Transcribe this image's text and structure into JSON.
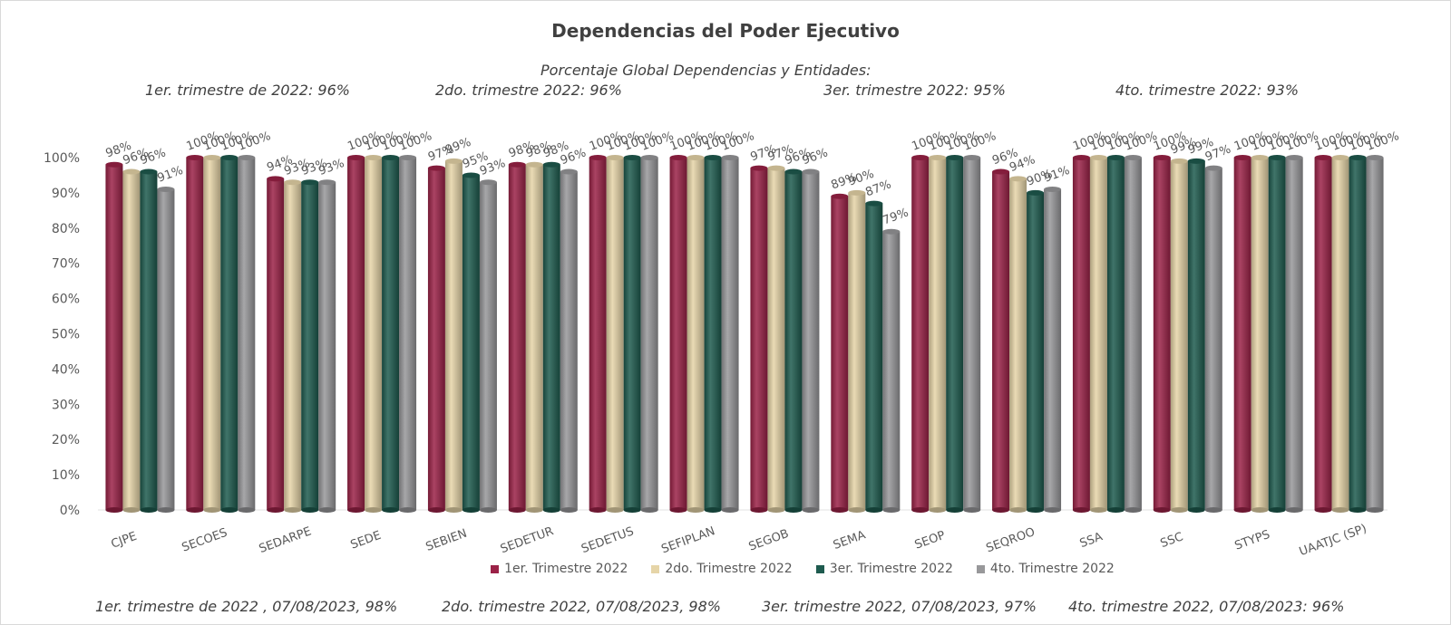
{
  "title": "Dependencias del Poder Ejecutivo",
  "header_line": "Porcentaje Global  Dependencias y Entidades:",
  "global_quarters": [
    "1er. trimestre de 2022: 96%",
    "2do. trimestre 2022: 96%",
    "3er. trimestre 2022: 95%",
    "4to. trimestre 2022: 93%"
  ],
  "footer_notes": [
    "1er. trimestre de 2022 , 07/08/2023, 98%",
    "2do. trimestre 2022, 07/08/2023, 98%",
    "3er. trimestre 2022, 07/08/2023, 97%",
    "4to. trimestre 2022, 07/08/2023: 96%"
  ],
  "colors": {
    "s1": "#9b2247",
    "s2": "#e6d5a8",
    "s3": "#1e5b4f",
    "s4": "#98989a"
  },
  "chart_data": {
    "type": "bar",
    "title": "Dependencias del Poder Ejecutivo",
    "categories": [
      "CJPE",
      "SECOES",
      "SEDARPE",
      "SEDE",
      "SEBIEN",
      "SEDETUR",
      "SEDETUS",
      "SEFIPLAN",
      "SEGOB",
      "SEMA",
      "SEOP",
      "SEQROO",
      "SSA",
      "SSC",
      "STYPS",
      "UAATJC (SP)"
    ],
    "series": [
      {
        "name": "1er. Trimestre 2022",
        "color": "#9b2247",
        "values": [
          98,
          100,
          94,
          100,
          97,
          98,
          100,
          100,
          97,
          89,
          100,
          96,
          100,
          100,
          100,
          100
        ]
      },
      {
        "name": "2do. Trimestre 2022",
        "color": "#e6d5a8",
        "values": [
          96,
          100,
          93,
          100,
          99,
          98,
          100,
          100,
          97,
          90,
          100,
          94,
          100,
          99,
          100,
          100
        ]
      },
      {
        "name": "3er. Trimestre 2022",
        "color": "#1e5b4f",
        "values": [
          96,
          100,
          93,
          100,
          95,
          98,
          100,
          100,
          96,
          87,
          100,
          90,
          100,
          99,
          100,
          100
        ]
      },
      {
        "name": "4to. Trimestre 2022",
        "color": "#98989a",
        "values": [
          91,
          100,
          93,
          100,
          93,
          96,
          100,
          100,
          96,
          79,
          100,
          91,
          100,
          97,
          100,
          100
        ]
      }
    ],
    "y_ticks": [
      "0%",
      "10%",
      "20%",
      "30%",
      "40%",
      "50%",
      "60%",
      "70%",
      "80%",
      "90%",
      "100%"
    ],
    "ylim": [
      0,
      100
    ],
    "grid": false,
    "legend_position": "bottom"
  }
}
